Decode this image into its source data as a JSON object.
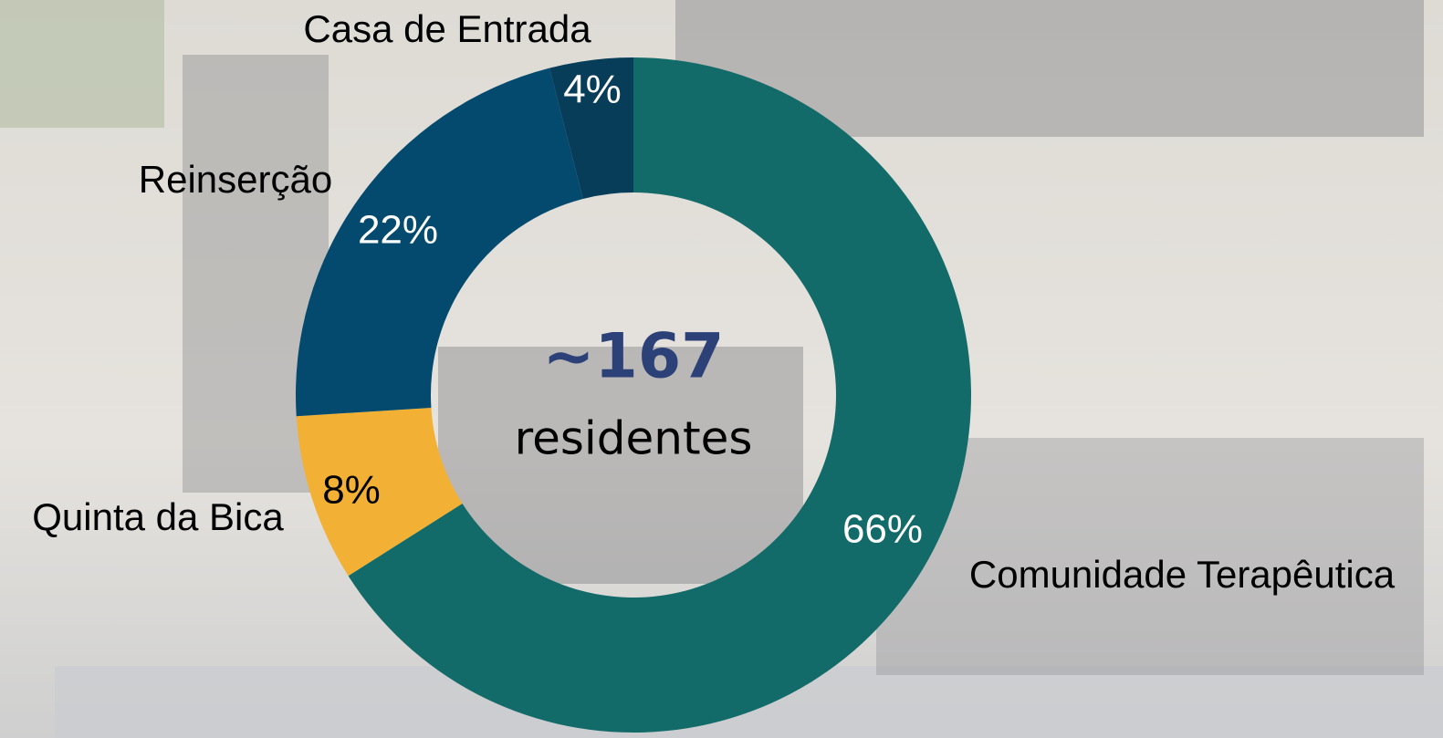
{
  "chart_data": {
    "type": "donut",
    "categories": [
      "Comunidade Terapêutica",
      "Quinta da Bica",
      "Reinserção",
      "Casa de Entrada"
    ],
    "values": [
      66,
      8,
      22,
      4
    ],
    "value_labels": [
      "66%",
      "8%",
      "22%",
      "4%"
    ],
    "colors": [
      "#136b69",
      "#f2b134",
      "#044a6e",
      "#083d5a"
    ],
    "center_label": "~167",
    "center_sublabel": "residentes"
  }
}
